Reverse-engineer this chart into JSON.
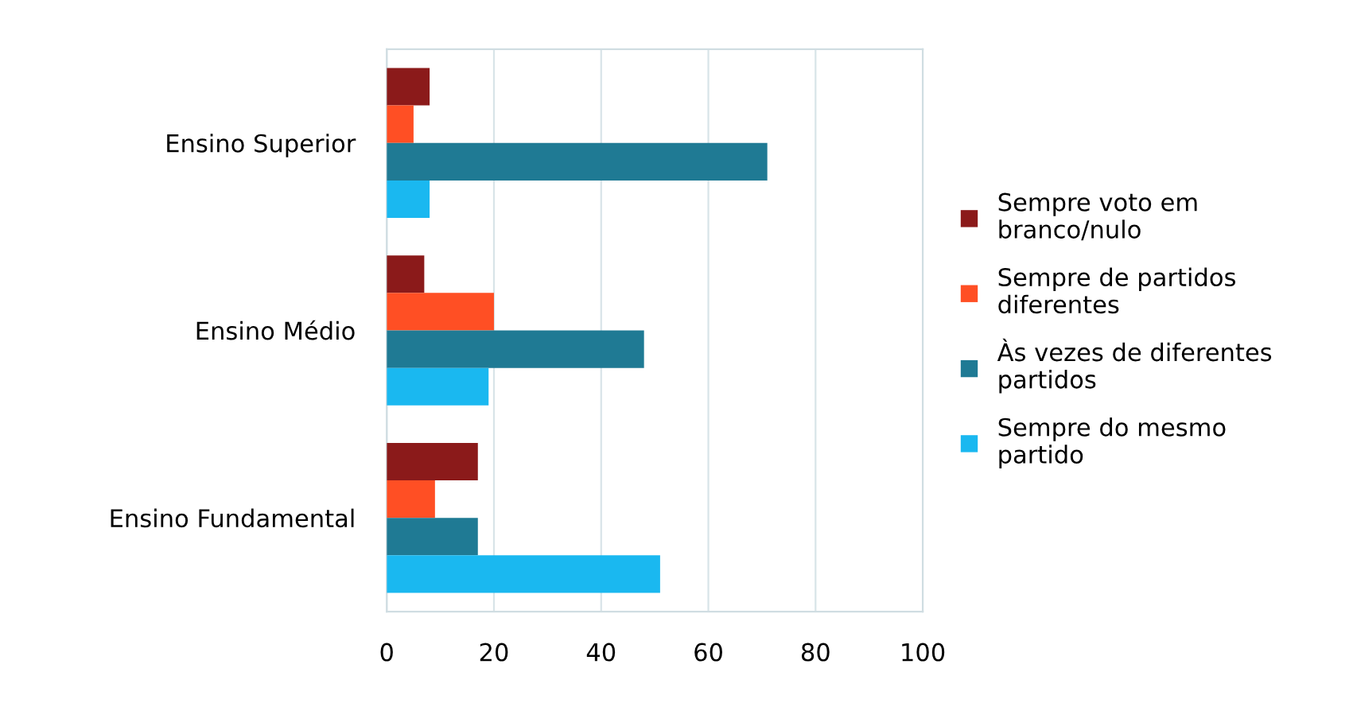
{
  "chart_data": {
    "type": "bar",
    "orientation": "horizontal",
    "categories": [
      "Ensino Superior",
      "Ensino Médio",
      "Ensino Fundamental"
    ],
    "series": [
      {
        "name": "Sempre voto em branco/nulo",
        "color": "#8b1a1a",
        "values": [
          8,
          7,
          17
        ]
      },
      {
        "name": "Sempre de partidos diferentes",
        "color": "#ff4f24",
        "values": [
          5,
          20,
          9
        ]
      },
      {
        "name": "Às vezes de diferentes partidos",
        "color": "#1f7a94",
        "values": [
          71,
          48,
          17
        ]
      },
      {
        "name": "Sempre do mesmo partido",
        "color": "#1ab8f0",
        "values": [
          8,
          19,
          51
        ]
      }
    ],
    "xlim": [
      0,
      100
    ],
    "xticks": [
      0,
      20,
      40,
      60,
      80,
      100
    ],
    "grid": "x",
    "legend": "right"
  }
}
